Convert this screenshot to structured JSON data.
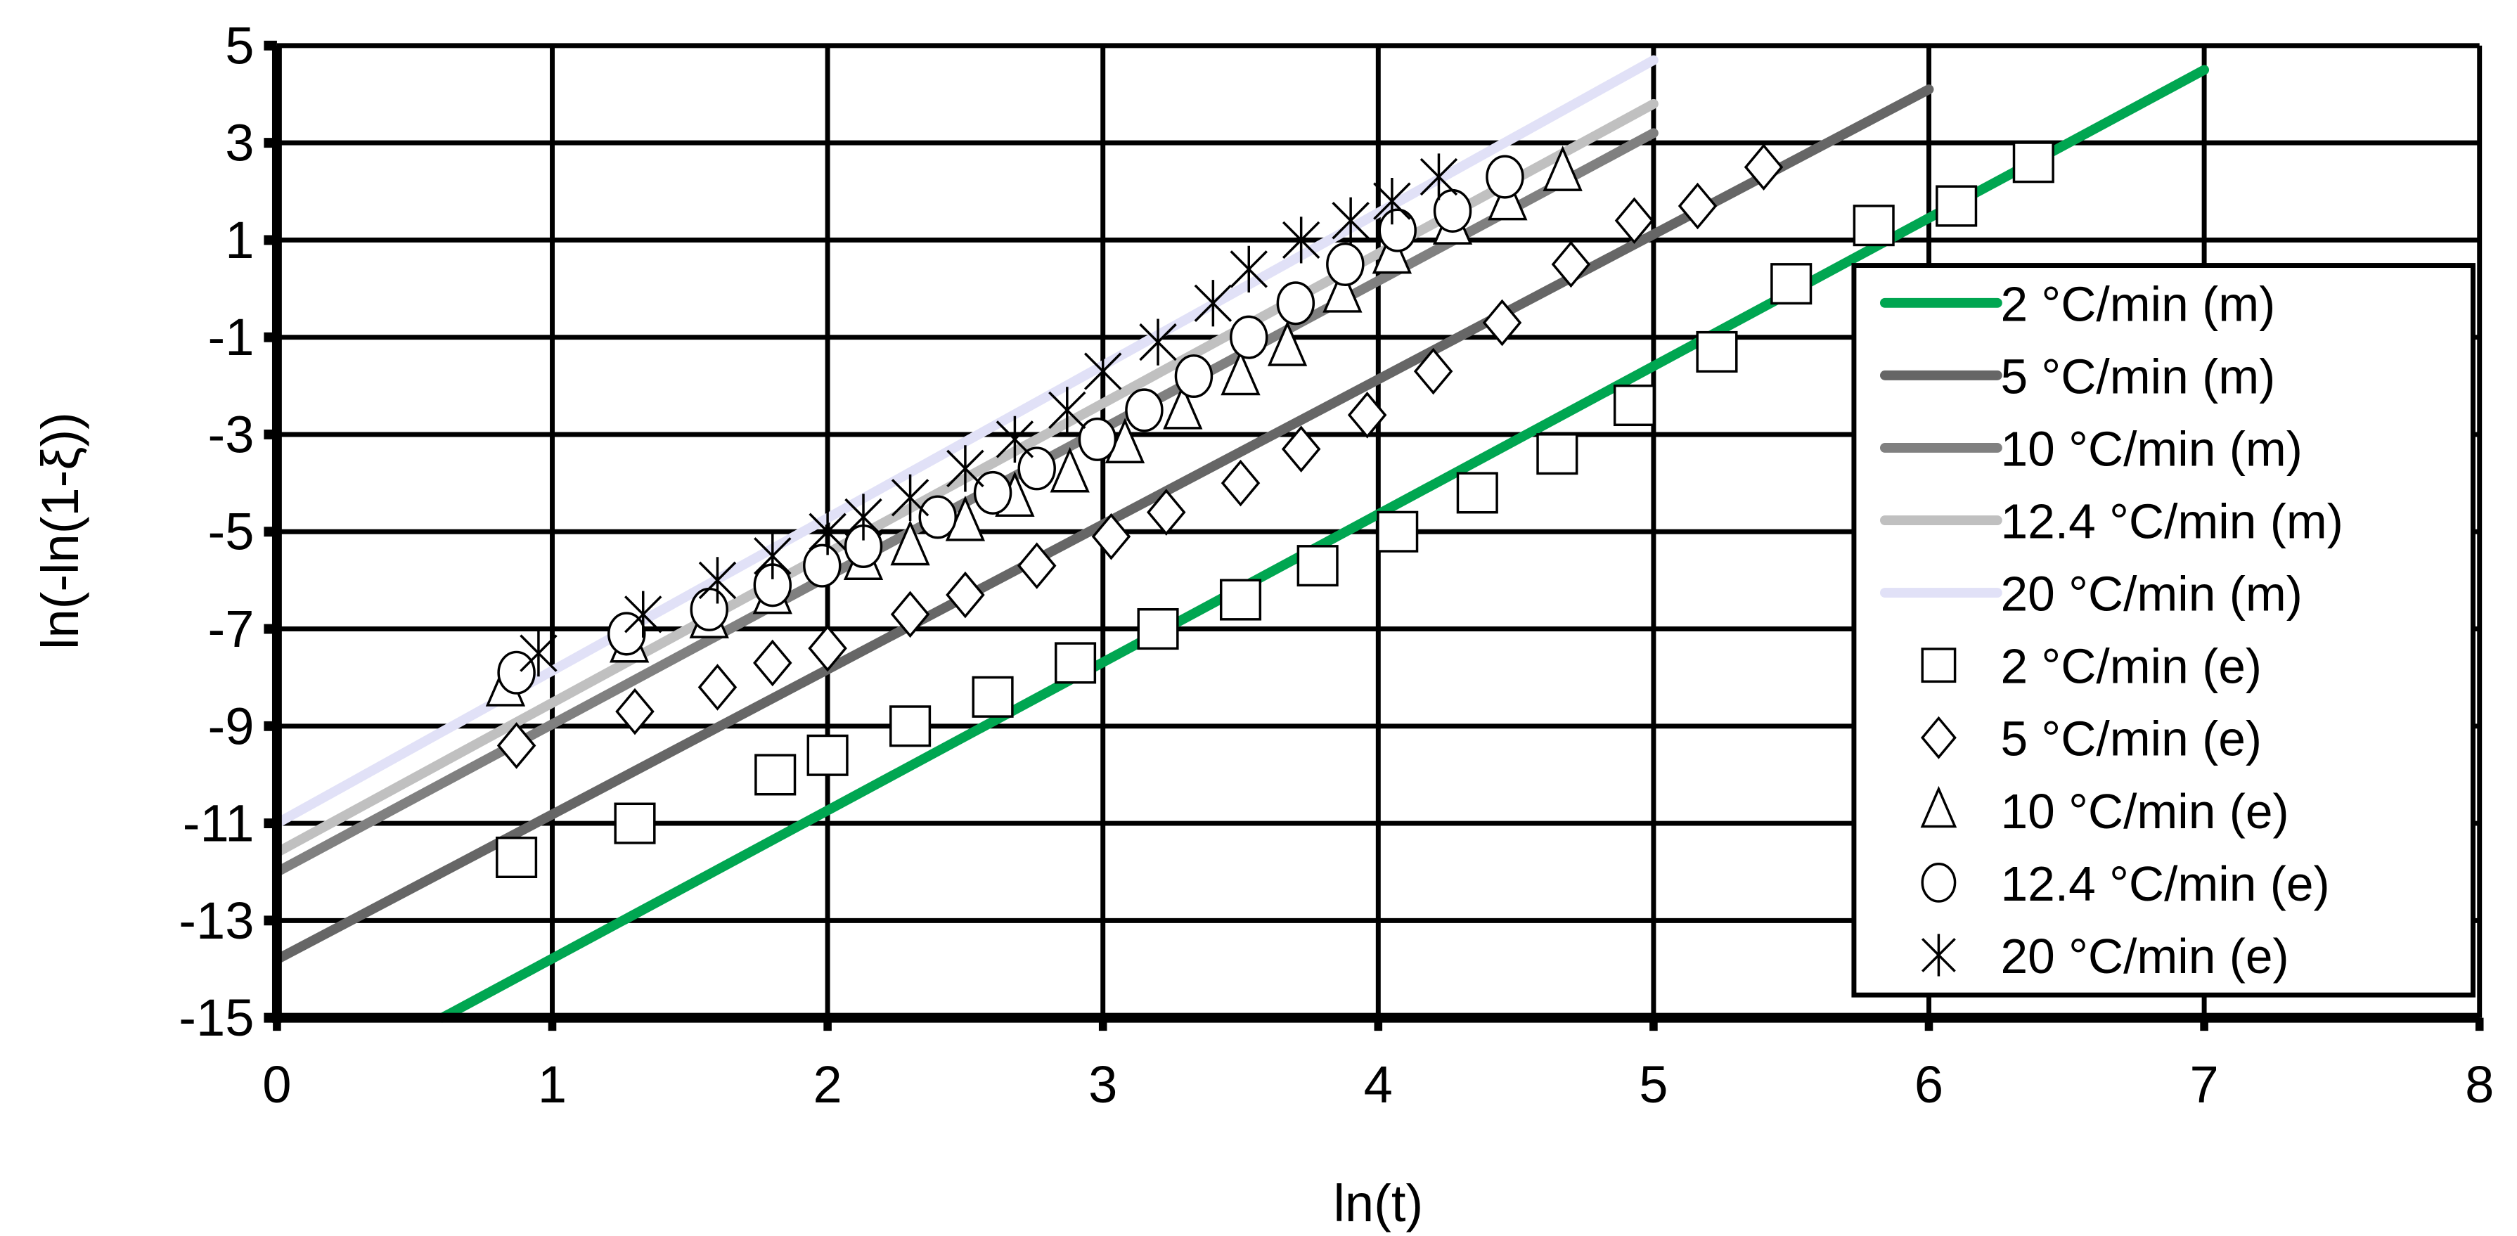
{
  "chart_data": {
    "type": "scatter",
    "title": "",
    "xlabel": "ln(t)",
    "ylabel": "ln(-ln(1-ξ))",
    "xlim": [
      0,
      8
    ],
    "ylim": [
      -15,
      5
    ],
    "xticks": [
      0,
      1,
      2,
      3,
      4,
      5,
      6,
      7,
      8
    ],
    "yticks": [
      5,
      3,
      1,
      -1,
      -3,
      -5,
      -7,
      -9,
      -11,
      -13,
      -15
    ],
    "grid": true,
    "legend_position": "right-inside",
    "lines": [
      {
        "name": "2 °C/min (m)",
        "color": "#00A651",
        "x": [
          0.6,
          7.0
        ],
        "y": [
          -15.0,
          4.5
        ]
      },
      {
        "name": "5 °C/min (m)",
        "color": "#666666",
        "x": [
          0.0,
          6.0
        ],
        "y": [
          -13.8,
          4.1
        ]
      },
      {
        "name": "10 °C/min (m)",
        "color": "#808080",
        "x": [
          0.0,
          5.0
        ],
        "y": [
          -12.0,
          3.2
        ]
      },
      {
        "name": "12.4 °C/min (m)",
        "color": "#C0C0C0",
        "x": [
          0.0,
          5.0
        ],
        "y": [
          -11.6,
          3.8
        ]
      },
      {
        "name": "20 °C/min (m)",
        "color": "#E1E1F7",
        "x": [
          0.0,
          5.0
        ],
        "y": [
          -11.0,
          4.7
        ]
      }
    ],
    "series": [
      {
        "name": "2 °C/min (e)",
        "marker": "square",
        "x": [
          0.87,
          1.3,
          1.81,
          2.0,
          2.3,
          2.6,
          2.9,
          3.2,
          3.5,
          3.78,
          4.07,
          4.36,
          4.65,
          4.93,
          5.23,
          5.5,
          5.8,
          6.1,
          6.38
        ],
        "y": [
          -11.7,
          -11.0,
          -10.0,
          -9.6,
          -9.0,
          -8.4,
          -7.7,
          -7.0,
          -6.4,
          -5.7,
          -5.0,
          -4.2,
          -3.4,
          -2.4,
          -1.3,
          0.1,
          1.3,
          1.7,
          2.6
        ]
      },
      {
        "name": "5 °C/min (e)",
        "marker": "diamond",
        "x": [
          0.87,
          1.3,
          1.6,
          1.8,
          2.0,
          2.3,
          2.5,
          2.76,
          3.03,
          3.23,
          3.5,
          3.72,
          3.96,
          4.2,
          4.45,
          4.7,
          4.93,
          5.16,
          5.4
        ],
        "y": [
          -9.4,
          -8.7,
          -8.2,
          -7.7,
          -7.4,
          -6.7,
          -6.3,
          -5.7,
          -5.1,
          -4.6,
          -4.0,
          -3.3,
          -2.6,
          -1.7,
          -0.7,
          0.5,
          1.4,
          1.7,
          2.5
        ]
      },
      {
        "name": "10 °C/min (e)",
        "marker": "triangle",
        "x": [
          0.83,
          1.28,
          1.57,
          1.8,
          2.13,
          2.3,
          2.5,
          2.68,
          2.88,
          3.08,
          3.29,
          3.5,
          3.67,
          3.87,
          4.05,
          4.27,
          4.47,
          4.67
        ],
        "y": [
          -8.2,
          -7.3,
          -6.8,
          -6.3,
          -5.6,
          -5.3,
          -4.8,
          -4.3,
          -3.8,
          -3.2,
          -2.5,
          -1.8,
          -1.2,
          -0.1,
          0.7,
          1.3,
          1.8,
          2.4
        ]
      },
      {
        "name": "12.4 °C/min (e)",
        "marker": "circle",
        "x": [
          0.87,
          1.27,
          1.57,
          1.8,
          1.98,
          2.13,
          2.4,
          2.6,
          2.76,
          2.98,
          3.15,
          3.33,
          3.53,
          3.7,
          3.88,
          4.07,
          4.27,
          4.46
        ],
        "y": [
          -7.9,
          -7.1,
          -6.6,
          -6.1,
          -5.7,
          -5.3,
          -4.7,
          -4.2,
          -3.7,
          -3.1,
          -2.5,
          -1.8,
          -1.0,
          -0.3,
          0.5,
          1.2,
          1.6,
          2.3
        ]
      },
      {
        "name": "20 °C/min (e)",
        "marker": "star",
        "x": [
          0.95,
          1.33,
          1.6,
          1.8,
          2.0,
          2.13,
          2.3,
          2.5,
          2.68,
          2.87,
          3.0,
          3.2,
          3.4,
          3.53,
          3.72,
          3.9,
          4.05,
          4.22
        ],
        "y": [
          -7.5,
          -6.7,
          -6.0,
          -5.5,
          -5.0,
          -4.7,
          -4.3,
          -3.7,
          -3.1,
          -2.5,
          -1.7,
          -1.1,
          -0.3,
          0.4,
          1.0,
          1.4,
          1.8,
          2.3
        ]
      }
    ]
  }
}
